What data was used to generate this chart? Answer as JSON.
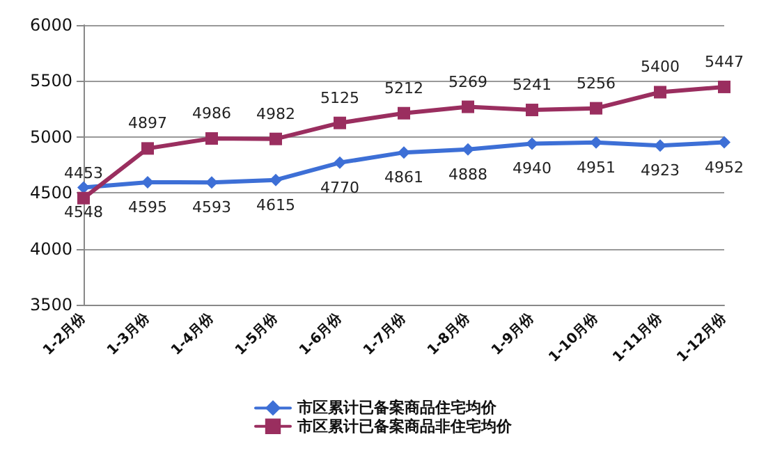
{
  "chart_data": {
    "type": "line",
    "categories": [
      "1-2月份",
      "1-3月份",
      "1-4月份",
      "1-5月份",
      "1-6月份",
      "1-7月份",
      "1-8月份",
      "1-9月份",
      "1-10月份",
      "1-11月份",
      "1-12月份"
    ],
    "series": [
      {
        "name": "市区累计已备案商品住宅均价",
        "color": "#3d6fd6",
        "marker": "diamond",
        "values": [
          4548,
          4595,
          4593,
          4615,
          4770,
          4861,
          4888,
          4940,
          4951,
          4923,
          4952
        ]
      },
      {
        "name": "市区累计已备案商品非住宅均价",
        "color": "#9a2e5f",
        "marker": "square",
        "values": [
          4453,
          4897,
          4986,
          4982,
          5125,
          5212,
          5269,
          5241,
          5256,
          5400,
          5447
        ]
      }
    ],
    "ylim": [
      3500,
      6000
    ],
    "yticks": [
      3500,
      4000,
      4500,
      5000,
      5500,
      6000
    ],
    "grid": "y",
    "legend": "bottom",
    "data_labels": true,
    "line_style": "solid"
  }
}
